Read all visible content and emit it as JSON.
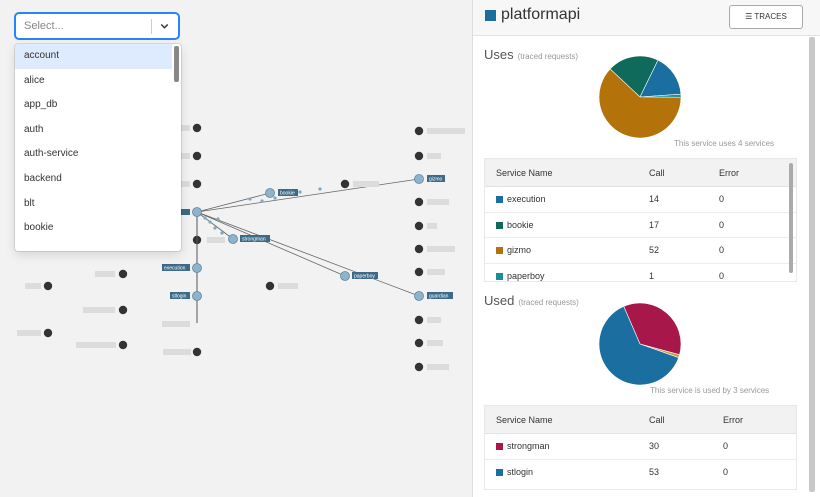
{
  "select": {
    "placeholder": "Select..."
  },
  "dropdown": {
    "items": [
      "account",
      "alice",
      "app_db",
      "auth",
      "auth-service",
      "backend",
      "blt",
      "bookie"
    ]
  },
  "graph": {
    "labels": {
      "bookie": "bookie",
      "strongman": "strongman",
      "paperboy": "paperboy",
      "gizmo": "gizmo",
      "execution": "execution",
      "stlogin": "stlogin",
      "guardian": "guardian"
    }
  },
  "panel": {
    "title": "platformapi",
    "traces_button": "TRACES",
    "uses": {
      "title": "Uses",
      "subtitle": "(traced requests)",
      "caption": "This service uses 4 services",
      "headers": {
        "name": "Service Name",
        "call": "Call",
        "error": "Error"
      },
      "rows": [
        {
          "name": "execution",
          "call": "14",
          "error": "0",
          "color": "#1a6fa0"
        },
        {
          "name": "bookie",
          "call": "17",
          "error": "0",
          "color": "#0f6a5c"
        },
        {
          "name": "gizmo",
          "call": "52",
          "error": "0",
          "color": "#b3720a"
        },
        {
          "name": "paperboy",
          "call": "1",
          "error": "0",
          "color": "#1a8f95"
        }
      ]
    },
    "used": {
      "title": "Used",
      "subtitle": "(traced requests)",
      "caption": "This service is used by 3 services",
      "headers": {
        "name": "Service Name",
        "call": "Call",
        "error": "Error"
      },
      "rows": [
        {
          "name": "strongman",
          "call": "30",
          "error": "0",
          "color": "#a8174a"
        },
        {
          "name": "stlogin",
          "call": "53",
          "error": "0",
          "color": "#1a6fa0"
        }
      ],
      "pie_other_share": 1,
      "pie_other_color": "#c6a34a"
    }
  }
}
